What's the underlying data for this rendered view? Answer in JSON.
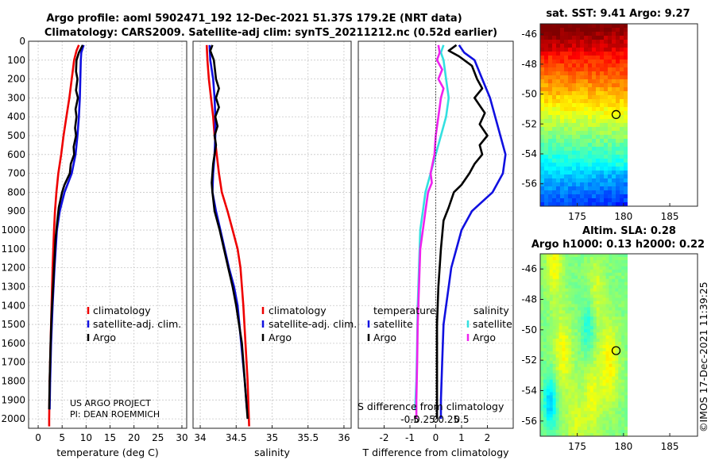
{
  "header": {
    "title_line1": "Argo profile: aoml 5902471_192 12-Dec-2021 51.37S 179.2E (NRT data)",
    "title_line2": "Climatology: CARS2009. Satellite-adj clim: synTS_20211212.nc (0.52d earlier)"
  },
  "footer": {
    "project": "US ARGO PROJECT",
    "pi": "PI: DEAN ROEMMICH",
    "credit": "©IMOS 17-Dec-2021 11:39:25"
  },
  "colors": {
    "climatology": "#ee0000",
    "satellite": "#1010e0",
    "argo": "#000000",
    "sal_sat": "#33e0e0",
    "sal_argo": "#ee22ee"
  },
  "chart_data": [
    {
      "type": "line",
      "panel": "temperature",
      "xlabel": "temperature (deg C)",
      "ylabel": "",
      "xlim": [
        -2,
        31
      ],
      "ylim": [
        2050,
        0
      ],
      "xticks": [
        0,
        5,
        10,
        15,
        20,
        25,
        30
      ],
      "yticks": [
        0,
        100,
        200,
        300,
        400,
        500,
        600,
        700,
        800,
        900,
        1000,
        1100,
        1200,
        1300,
        1400,
        1500,
        1600,
        1700,
        1800,
        1900,
        2000
      ],
      "legend": [
        "climatology",
        "satellite-adj. clim.",
        "Argo"
      ],
      "series": [
        {
          "name": "climatology",
          "color": "#ee0000",
          "points": [
            [
              8.5,
              20
            ],
            [
              8.0,
              50
            ],
            [
              7.5,
              100
            ],
            [
              7.0,
              200
            ],
            [
              6.5,
              300
            ],
            [
              5.9,
              400
            ],
            [
              5.3,
              500
            ],
            [
              4.8,
              600
            ],
            [
              4.2,
              700
            ],
            [
              3.8,
              800
            ],
            [
              3.5,
              900
            ],
            [
              3.3,
              1000
            ],
            [
              3.0,
              1200
            ],
            [
              2.8,
              1400
            ],
            [
              2.6,
              1600
            ],
            [
              2.4,
              1800
            ],
            [
              2.3,
              2000
            ],
            [
              2.3,
              2040
            ]
          ]
        },
        {
          "name": "satellite-adj. clim.",
          "color": "#1010e0",
          "points": [
            [
              9.5,
              20
            ],
            [
              9.0,
              60
            ],
            [
              8.9,
              100
            ],
            [
              8.8,
              200
            ],
            [
              8.7,
              300
            ],
            [
              8.5,
              400
            ],
            [
              8.2,
              500
            ],
            [
              7.8,
              600
            ],
            [
              7.0,
              700
            ],
            [
              5.5,
              800
            ],
            [
              4.5,
              900
            ],
            [
              3.9,
              1000
            ],
            [
              3.4,
              1200
            ],
            [
              3.0,
              1400
            ],
            [
              2.7,
              1600
            ],
            [
              2.5,
              1800
            ],
            [
              2.4,
              1950
            ]
          ]
        },
        {
          "name": "Argo",
          "color": "#000000",
          "points": [
            [
              9.3,
              20
            ],
            [
              8.5,
              60
            ],
            [
              8.0,
              100
            ],
            [
              7.9,
              160
            ],
            [
              8.2,
              200
            ],
            [
              7.9,
              260
            ],
            [
              8.3,
              300
            ],
            [
              7.8,
              360
            ],
            [
              8.0,
              400
            ],
            [
              7.7,
              460
            ],
            [
              7.9,
              500
            ],
            [
              7.4,
              560
            ],
            [
              7.5,
              600
            ],
            [
              6.8,
              650
            ],
            [
              6.6,
              700
            ],
            [
              5.5,
              760
            ],
            [
              5.0,
              800
            ],
            [
              4.3,
              880
            ],
            [
              4.0,
              950
            ],
            [
              3.6,
              1050
            ],
            [
              3.4,
              1150
            ],
            [
              3.1,
              1300
            ],
            [
              2.8,
              1450
            ],
            [
              2.6,
              1600
            ],
            [
              2.4,
              1800
            ],
            [
              2.3,
              1950
            ]
          ]
        }
      ]
    },
    {
      "type": "line",
      "panel": "salinity",
      "xlabel": "salinity",
      "ylabel": "",
      "xlim": [
        33.9,
        36.1
      ],
      "ylim": [
        2050,
        0
      ],
      "xticks": [
        34,
        34.5,
        35,
        35.5,
        36
      ],
      "legend": [
        "climatology",
        "satellite-adj. clim.",
        "Argo"
      ],
      "series": [
        {
          "name": "climatology",
          "color": "#ee0000",
          "points": [
            [
              34.09,
              20
            ],
            [
              34.1,
              100
            ],
            [
              34.12,
              200
            ],
            [
              34.15,
              300
            ],
            [
              34.18,
              400
            ],
            [
              34.2,
              500
            ],
            [
              34.23,
              600
            ],
            [
              34.26,
              700
            ],
            [
              34.3,
              800
            ],
            [
              34.38,
              900
            ],
            [
              34.45,
              1000
            ],
            [
              34.52,
              1100
            ],
            [
              34.56,
              1200
            ],
            [
              34.6,
              1400
            ],
            [
              34.63,
              1600
            ],
            [
              34.66,
              1800
            ],
            [
              34.68,
              2040
            ]
          ]
        },
        {
          "name": "satellite-adj. clim.",
          "color": "#1010e0",
          "points": [
            [
              34.13,
              20
            ],
            [
              34.14,
              100
            ],
            [
              34.18,
              200
            ],
            [
              34.2,
              300
            ],
            [
              34.21,
              400
            ],
            [
              34.21,
              500
            ],
            [
              34.2,
              600
            ],
            [
              34.18,
              700
            ],
            [
              34.17,
              800
            ],
            [
              34.22,
              900
            ],
            [
              34.28,
              1000
            ],
            [
              34.34,
              1100
            ],
            [
              34.4,
              1200
            ],
            [
              34.47,
              1300
            ],
            [
              34.52,
              1400
            ],
            [
              34.57,
              1600
            ],
            [
              34.62,
              1800
            ],
            [
              34.65,
              1950
            ]
          ]
        },
        {
          "name": "Argo",
          "color": "#000000",
          "points": [
            [
              34.17,
              20
            ],
            [
              34.14,
              50
            ],
            [
              34.19,
              100
            ],
            [
              34.22,
              200
            ],
            [
              34.26,
              250
            ],
            [
              34.22,
              300
            ],
            [
              34.26,
              350
            ],
            [
              34.21,
              400
            ],
            [
              34.24,
              450
            ],
            [
              34.2,
              500
            ],
            [
              34.22,
              550
            ],
            [
              34.2,
              600
            ],
            [
              34.18,
              650
            ],
            [
              34.17,
              700
            ],
            [
              34.16,
              750
            ],
            [
              34.17,
              800
            ],
            [
              34.2,
              900
            ],
            [
              34.27,
              1000
            ],
            [
              34.33,
              1100
            ],
            [
              34.39,
              1200
            ],
            [
              34.45,
              1300
            ],
            [
              34.5,
              1400
            ],
            [
              34.54,
              1500
            ],
            [
              34.58,
              1600
            ],
            [
              34.61,
              1750
            ],
            [
              34.64,
              1900
            ],
            [
              34.66,
              2000
            ]
          ]
        }
      ]
    },
    {
      "type": "line",
      "panel": "difference",
      "xlabel": "T difference from climatology",
      "ylabel": "",
      "xlim": [
        -3,
        3
      ],
      "ylim": [
        2050,
        0
      ],
      "xticks": [
        -2,
        -1,
        0,
        1,
        2
      ],
      "x2label": "S difference from climatology",
      "x2ticks": [
        "-0.5",
        "-0.25",
        "0",
        "0.25",
        "0.5"
      ],
      "legend_temperature_title": "temperature",
      "legend_salinity_title": "salinity",
      "legend_temperature": [
        "satellite",
        "Argo"
      ],
      "legend_salinity": [
        "satellite",
        "Argo"
      ],
      "series": [
        {
          "name": "T satellite",
          "color": "#1010e0",
          "points": [
            [
              0.9,
              20
            ],
            [
              1.1,
              60
            ],
            [
              1.5,
              100
            ],
            [
              1.8,
              200
            ],
            [
              2.1,
              300
            ],
            [
              2.3,
              400
            ],
            [
              2.5,
              500
            ],
            [
              2.7,
              600
            ],
            [
              2.6,
              700
            ],
            [
              2.2,
              800
            ],
            [
              1.4,
              900
            ],
            [
              1.0,
              1000
            ],
            [
              0.8,
              1100
            ],
            [
              0.6,
              1200
            ],
            [
              0.5,
              1300
            ],
            [
              0.3,
              1500
            ],
            [
              0.25,
              1700
            ],
            [
              0.2,
              1900
            ],
            [
              0.2,
              2000
            ]
          ]
        },
        {
          "name": "T Argo",
          "color": "#000000",
          "points": [
            [
              0.8,
              20
            ],
            [
              0.5,
              50
            ],
            [
              0.9,
              80
            ],
            [
              1.4,
              130
            ],
            [
              1.6,
              200
            ],
            [
              1.8,
              250
            ],
            [
              1.5,
              300
            ],
            [
              1.9,
              380
            ],
            [
              1.7,
              440
            ],
            [
              2.0,
              500
            ],
            [
              1.7,
              550
            ],
            [
              1.8,
              600
            ],
            [
              1.5,
              650
            ],
            [
              1.3,
              700
            ],
            [
              1.0,
              760
            ],
            [
              0.7,
              800
            ],
            [
              0.5,
              880
            ],
            [
              0.3,
              950
            ],
            [
              0.2,
              1100
            ],
            [
              0.1,
              1300
            ],
            [
              0.05,
              1500
            ],
            [
              0.05,
              1700
            ],
            [
              0.05,
              1900
            ],
            [
              0.05,
              2000
            ]
          ]
        },
        {
          "name": "S satellite",
          "color": "#33e0e0",
          "points": [
            [
              0.3,
              20
            ],
            [
              0.2,
              60
            ],
            [
              0.3,
              100
            ],
            [
              0.4,
              200
            ],
            [
              0.5,
              300
            ],
            [
              0.4,
              400
            ],
            [
              0.2,
              500
            ],
            [
              0.0,
              600
            ],
            [
              -0.2,
              700
            ],
            [
              -0.4,
              800
            ],
            [
              -0.5,
              900
            ],
            [
              -0.6,
              1000
            ],
            [
              -0.65,
              1200
            ],
            [
              -0.7,
              1400
            ],
            [
              -0.72,
              1600
            ],
            [
              -0.75,
              1800
            ],
            [
              -0.8,
              1950
            ]
          ]
        },
        {
          "name": "S Argo",
          "color": "#ee22ee",
          "points": [
            [
              0.1,
              20
            ],
            [
              0.15,
              60
            ],
            [
              0.05,
              100
            ],
            [
              0.25,
              150
            ],
            [
              0.1,
              200
            ],
            [
              0.3,
              250
            ],
            [
              0.2,
              300
            ],
            [
              0.1,
              400
            ],
            [
              0.0,
              500
            ],
            [
              -0.05,
              600
            ],
            [
              -0.2,
              700
            ],
            [
              -0.15,
              750
            ],
            [
              -0.3,
              800
            ],
            [
              -0.4,
              900
            ],
            [
              -0.5,
              1000
            ],
            [
              -0.6,
              1100
            ],
            [
              -0.65,
              1300
            ],
            [
              -0.7,
              1500
            ],
            [
              -0.72,
              1700
            ],
            [
              -0.75,
              1900
            ],
            [
              -0.75,
              2000
            ]
          ]
        }
      ]
    },
    {
      "type": "heatmap",
      "panel": "sst",
      "title": "sat. SST: 9.41 Argo: 9.27",
      "xticks": [
        175,
        180,
        185
      ],
      "yticks": [
        -46,
        -48,
        -50,
        -52,
        -54,
        -56
      ],
      "xlim": [
        171,
        188
      ],
      "ylim": [
        -57.5,
        -45.3
      ],
      "float": [
        179.2,
        -51.37
      ]
    },
    {
      "type": "heatmap",
      "panel": "sla",
      "title": "Altim. SLA: 0.28",
      "subtitle": "Argo h1000: 0.13 h2000: 0.22",
      "xticks": [
        175,
        180,
        185
      ],
      "yticks": [
        -46,
        -48,
        -50,
        -52,
        -54,
        -56
      ],
      "xlim": [
        171,
        188
      ],
      "ylim": [
        -57,
        -45
      ],
      "float": [
        179.2,
        -51.37
      ]
    }
  ]
}
